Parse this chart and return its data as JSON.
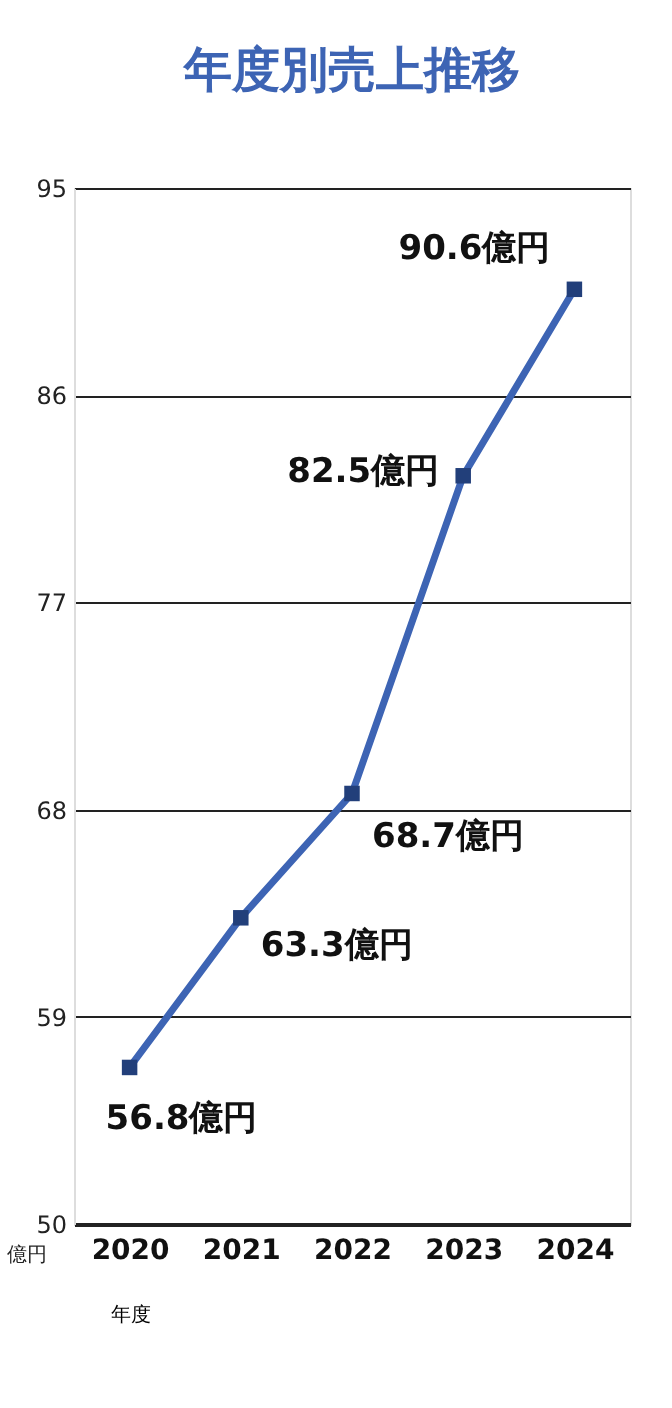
{
  "chart_data": {
    "type": "line",
    "title": "年度別売上推移",
    "xlabel": "年度",
    "ylabel": "億円",
    "categories": [
      "2020",
      "2021",
      "2022",
      "2023",
      "2024"
    ],
    "series": [
      {
        "color": "#3d64b4",
        "values": [
          56.8,
          63.3,
          68.7,
          82.5,
          90.6
        ],
        "value_labels": [
          "56.8億円",
          "63.3億円",
          "68.7億円",
          "82.5億円",
          "90.6億円"
        ]
      }
    ],
    "ylim": [
      50,
      95
    ],
    "yticks": [
      50,
      59,
      68,
      77,
      86,
      95
    ],
    "grid": "y",
    "marker": "square",
    "line_style": "solid"
  }
}
